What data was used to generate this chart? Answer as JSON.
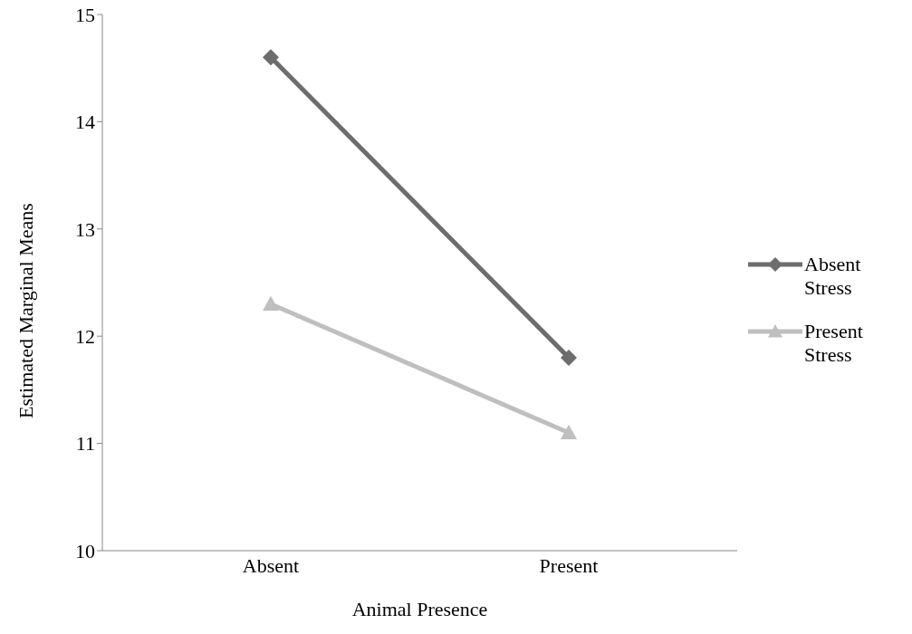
{
  "chart_data": {
    "type": "line",
    "xlabel": "Animal Presence",
    "ylabel": "Estimated Marginal Means",
    "categories": [
      "Absent",
      "Present"
    ],
    "series": [
      {
        "name": "Absent Stress",
        "color": "#6d6d6d",
        "values": [
          14.6,
          11.8
        ],
        "marker": "diamond"
      },
      {
        "name": "Present Stress",
        "color": "#bfbfbf",
        "values": [
          12.3,
          11.1
        ],
        "marker": "triangle"
      }
    ],
    "ylim": [
      10,
      15
    ],
    "yticks": [
      10,
      11,
      12,
      13,
      14,
      15
    ],
    "grid": false,
    "legend": "right",
    "line_style": "solid"
  }
}
